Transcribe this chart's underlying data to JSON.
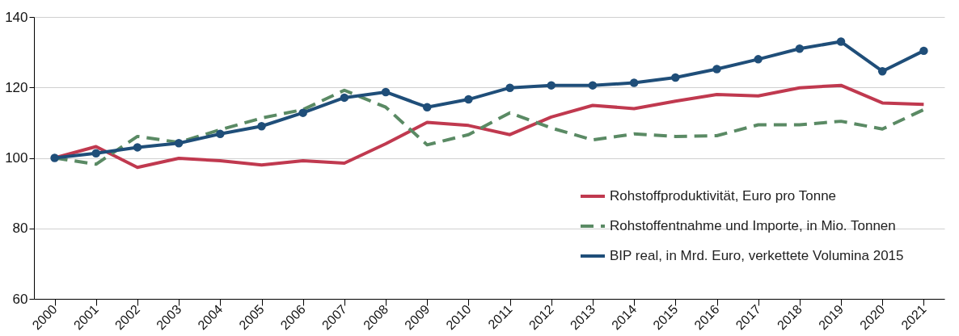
{
  "chart_data": {
    "type": "line",
    "categories": [
      "2000",
      "2001",
      "2002",
      "2003",
      "2004",
      "2005",
      "2006",
      "2007",
      "2008",
      "2009",
      "2010",
      "2011",
      "2012",
      "2013",
      "2014",
      "2015",
      "2016",
      "2017",
      "2018",
      "2019",
      "2020",
      "2021"
    ],
    "series": [
      {
        "name": "Rohstoffproduktivität, Euro pro Tonne",
        "color": "#c0394f",
        "line_style": "solid",
        "marker": "none",
        "values": [
          100,
          103.2,
          97.3,
          99.9,
          99.2,
          98,
          99.2,
          98.5,
          104,
          110.1,
          109.2,
          106.6,
          111.6,
          114.9,
          114,
          116.1,
          118,
          117.6,
          119.9,
          120.6,
          115.6,
          115.2
        ]
      },
      {
        "name": "Rohstoffentnahme und Importe, in Mio. Tonnen",
        "color": "#5a8a64",
        "line_style": "dashed",
        "marker": "none",
        "values": [
          100,
          98.2,
          106.1,
          104.4,
          108,
          111.3,
          113.7,
          119.2,
          114.4,
          103.7,
          106.6,
          112.8,
          108.5,
          105.1,
          106.8,
          106.1,
          106.3,
          109.4,
          109.4,
          110.4,
          108.2,
          113.7
        ]
      },
      {
        "name": "BIP real, in Mrd. Euro,  verkettete Volumina 2015",
        "color": "#1f4e79",
        "line_style": "solid",
        "marker": "circle",
        "values": [
          100,
          101.3,
          103,
          104.2,
          106.8,
          109,
          112.8,
          117.1,
          118.7,
          114.4,
          116.6,
          119.9,
          120.6,
          120.6,
          121.3,
          122.8,
          125.2,
          128,
          131,
          133,
          124.6,
          130.4
        ]
      }
    ],
    "ylim": [
      60,
      140
    ],
    "yticks": [
      60,
      80,
      100,
      120,
      140
    ],
    "grid": "y",
    "legend": "bottom right"
  }
}
